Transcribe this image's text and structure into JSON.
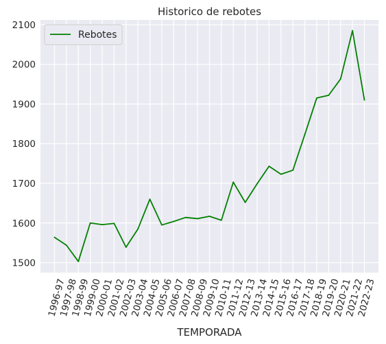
{
  "chart_data": {
    "type": "line",
    "title": "Historico de rebotes",
    "xlabel": "TEMPORADA",
    "ylabel": "",
    "ylim": [
      1475,
      2112
    ],
    "yticks": [
      1500,
      1600,
      1700,
      1800,
      1900,
      2000,
      2100
    ],
    "grid": true,
    "legend_position": "top-left",
    "colors": {
      "background": "#eaeaf2",
      "grid": "#ffffff",
      "line": "#008000"
    },
    "categories": [
      "1996-97",
      "1997-98",
      "1998-99",
      "1999-00",
      "2000-01",
      "2001-02",
      "2002-03",
      "2003-04",
      "2004-05",
      "2005-06",
      "2006-07",
      "2007-08",
      "2008-09",
      "2009-10",
      "2010-11",
      "2011-12",
      "2012-13",
      "2013-14",
      "2014-15",
      "2015-16",
      "2016-17",
      "2017-18",
      "2018-19",
      "2019-20",
      "2020-21",
      "2021-22",
      "2022-23"
    ],
    "series": [
      {
        "name": "Rebotes",
        "values": [
          1564,
          1544,
          1503,
          1600,
          1596,
          1599,
          1539,
          1585,
          1660,
          1595,
          1604,
          1614,
          1611,
          1617,
          1607,
          1703,
          1652,
          1699,
          1743,
          1723,
          1733,
          1823,
          1915,
          1922,
          1963,
          2085,
          1910
        ]
      }
    ]
  }
}
